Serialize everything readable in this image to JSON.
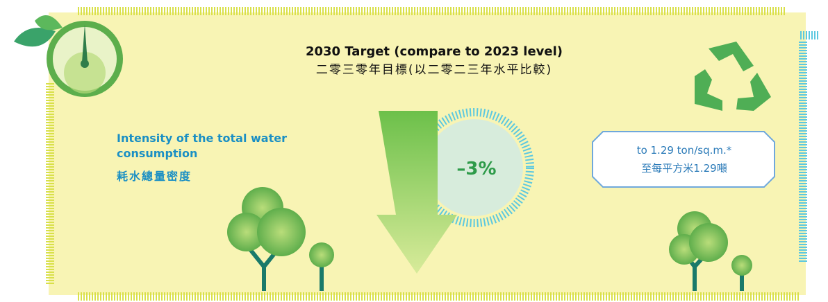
{
  "header": {
    "title": "2030 Target (compare to 2023 level)",
    "subtitle": "二零三零年目標(以二零二三年水平比較)"
  },
  "metric": {
    "name": "Intensity of the total water consumption",
    "name_zh": "耗水總量密度",
    "change": "–3%"
  },
  "target": {
    "text": "to 1.29 ton/sq.m.*",
    "text_zh": "至每平方米1.29噸"
  }
}
